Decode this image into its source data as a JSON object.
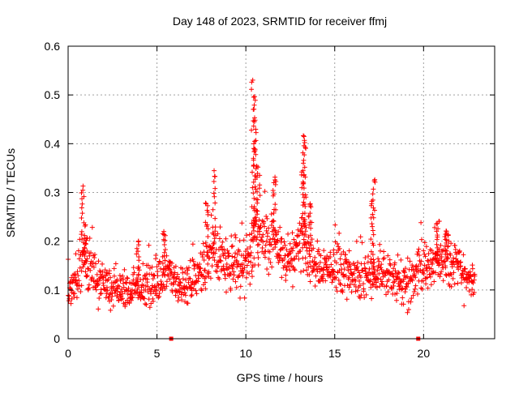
{
  "chart_data": {
    "type": "scatter",
    "title": "Day 148 of 2023, SRMTID for receiver ffmj",
    "xlabel": "GPS time / hours",
    "ylabel": "SRMTID / TECUs",
    "xlim": [
      0,
      24
    ],
    "ylim": [
      0,
      0.6
    ],
    "x_ticks": [
      0,
      5,
      10,
      15,
      20
    ],
    "x_tick_labels": [
      "0",
      "5",
      "10",
      "15",
      "20"
    ],
    "y_ticks": [
      0,
      0.1,
      0.2,
      0.3,
      0.4,
      0.5,
      0.6
    ],
    "y_tick_labels": [
      "0",
      "0.1",
      "0.2",
      "0.3",
      "0.4",
      "0.5",
      "0.6"
    ],
    "grid": true,
    "marker": "plus",
    "color": "#ff0000",
    "zero_markers_x": [
      5.8,
      19.7
    ],
    "x_range": [
      0.0,
      22.9
    ],
    "envelope": [
      {
        "x": 0.0,
        "base": 0.1,
        "spread": 0.04
      },
      {
        "x": 0.5,
        "base": 0.11,
        "spread": 0.05
      },
      {
        "x": 0.8,
        "base": 0.18,
        "spread": 0.08
      },
      {
        "x": 1.2,
        "base": 0.14,
        "spread": 0.05
      },
      {
        "x": 2.0,
        "base": 0.11,
        "spread": 0.04
      },
      {
        "x": 3.0,
        "base": 0.1,
        "spread": 0.04
      },
      {
        "x": 4.0,
        "base": 0.1,
        "spread": 0.04
      },
      {
        "x": 5.0,
        "base": 0.11,
        "spread": 0.05
      },
      {
        "x": 5.5,
        "base": 0.14,
        "spread": 0.05
      },
      {
        "x": 6.5,
        "base": 0.1,
        "spread": 0.04
      },
      {
        "x": 7.5,
        "base": 0.14,
        "spread": 0.05
      },
      {
        "x": 8.2,
        "base": 0.18,
        "spread": 0.08
      },
      {
        "x": 9.0,
        "base": 0.15,
        "spread": 0.05
      },
      {
        "x": 10.0,
        "base": 0.15,
        "spread": 0.06
      },
      {
        "x": 10.6,
        "base": 0.22,
        "spread": 0.08
      },
      {
        "x": 11.5,
        "base": 0.2,
        "spread": 0.06
      },
      {
        "x": 12.5,
        "base": 0.16,
        "spread": 0.04
      },
      {
        "x": 13.2,
        "base": 0.2,
        "spread": 0.07
      },
      {
        "x": 14.0,
        "base": 0.14,
        "spread": 0.04
      },
      {
        "x": 15.0,
        "base": 0.15,
        "spread": 0.05
      },
      {
        "x": 16.0,
        "base": 0.13,
        "spread": 0.05
      },
      {
        "x": 17.0,
        "base": 0.13,
        "spread": 0.05
      },
      {
        "x": 18.0,
        "base": 0.13,
        "spread": 0.05
      },
      {
        "x": 19.0,
        "base": 0.11,
        "spread": 0.05
      },
      {
        "x": 20.0,
        "base": 0.15,
        "spread": 0.05
      },
      {
        "x": 21.0,
        "base": 0.16,
        "spread": 0.05
      },
      {
        "x": 22.0,
        "base": 0.14,
        "spread": 0.05
      },
      {
        "x": 22.9,
        "base": 0.11,
        "spread": 0.04
      }
    ],
    "peaks": [
      {
        "x": 0.8,
        "y": 0.31
      },
      {
        "x": 1.0,
        "y": 0.21
      },
      {
        "x": 3.9,
        "y": 0.2
      },
      {
        "x": 5.4,
        "y": 0.22
      },
      {
        "x": 8.2,
        "y": 0.34
      },
      {
        "x": 7.8,
        "y": 0.28
      },
      {
        "x": 10.4,
        "y": 0.53
      },
      {
        "x": 10.5,
        "y": 0.5
      },
      {
        "x": 10.5,
        "y": 0.45
      },
      {
        "x": 10.5,
        "y": 0.39
      },
      {
        "x": 10.7,
        "y": 0.35
      },
      {
        "x": 11.6,
        "y": 0.33
      },
      {
        "x": 13.2,
        "y": 0.34
      },
      {
        "x": 13.3,
        "y": 0.42
      },
      {
        "x": 13.3,
        "y": 0.4
      },
      {
        "x": 13.6,
        "y": 0.28
      },
      {
        "x": 17.2,
        "y": 0.33
      },
      {
        "x": 17.1,
        "y": 0.28
      },
      {
        "x": 20.8,
        "y": 0.24
      },
      {
        "x": 21.3,
        "y": 0.22
      }
    ],
    "point_count": 1400
  }
}
